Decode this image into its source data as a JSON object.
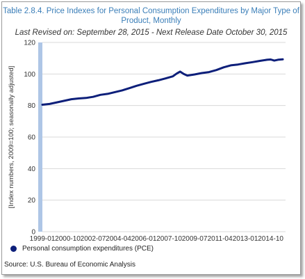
{
  "title_line1": "Table 2.8.4. Price Indexes for Personal Consumption Expenditures by Major Type of",
  "title_line2": "Product, Monthly",
  "subtitle": "Last Revised on: September 28, 2015 - Next Release Date October 30, 2015",
  "source": "Source: U.S. Bureau of Economic  Analysis",
  "colors": {
    "title": "#3a7eb8",
    "series": "#0d1f7a",
    "axis_bar": "#aec6e6",
    "grid": "#d8d8d8"
  },
  "chart_data": {
    "type": "line",
    "title": "Table 2.8.4. Price Indexes for Personal Consumption Expenditures by Major Type of Product, Monthly",
    "ylabel": "[Index numbers, 2009=100; seasonally adjusted]",
    "xlabel": "",
    "ylim": [
      0,
      120
    ],
    "yticks": [
      0,
      20,
      40,
      60,
      80,
      100,
      120
    ],
    "xticks": [
      "1999-01",
      "2000-10",
      "2002-07",
      "2004-04",
      "2006-01",
      "2007-10",
      "2009-07",
      "2011-04",
      "2013-01",
      "2014-10"
    ],
    "grid": true,
    "legend_position": "bottom",
    "series": [
      {
        "name": "Personal consumption expenditures (PCE)",
        "x": [
          "1999-01",
          "1999-07",
          "2000-01",
          "2000-07",
          "2001-01",
          "2001-07",
          "2002-01",
          "2002-07",
          "2003-01",
          "2003-07",
          "2004-01",
          "2004-07",
          "2005-01",
          "2005-07",
          "2006-01",
          "2006-07",
          "2007-01",
          "2007-07",
          "2008-01",
          "2008-04",
          "2008-07",
          "2008-10",
          "2009-01",
          "2009-07",
          "2010-01",
          "2010-07",
          "2011-01",
          "2011-07",
          "2012-01",
          "2012-07",
          "2013-01",
          "2013-07",
          "2014-01",
          "2014-07",
          "2014-10",
          "2015-01",
          "2015-04",
          "2015-08"
        ],
        "values": [
          80.5,
          81.0,
          82.0,
          83.0,
          84.0,
          84.5,
          84.8,
          85.5,
          86.8,
          87.4,
          88.5,
          89.6,
          91.0,
          92.5,
          93.8,
          95.0,
          96.0,
          97.2,
          98.5,
          100.2,
          101.5,
          100.0,
          99.0,
          99.7,
          100.6,
          101.2,
          102.5,
          104.2,
          105.5,
          106.0,
          106.8,
          107.5,
          108.3,
          109.0,
          109.2,
          108.5,
          109.0,
          109.3
        ]
      }
    ]
  }
}
